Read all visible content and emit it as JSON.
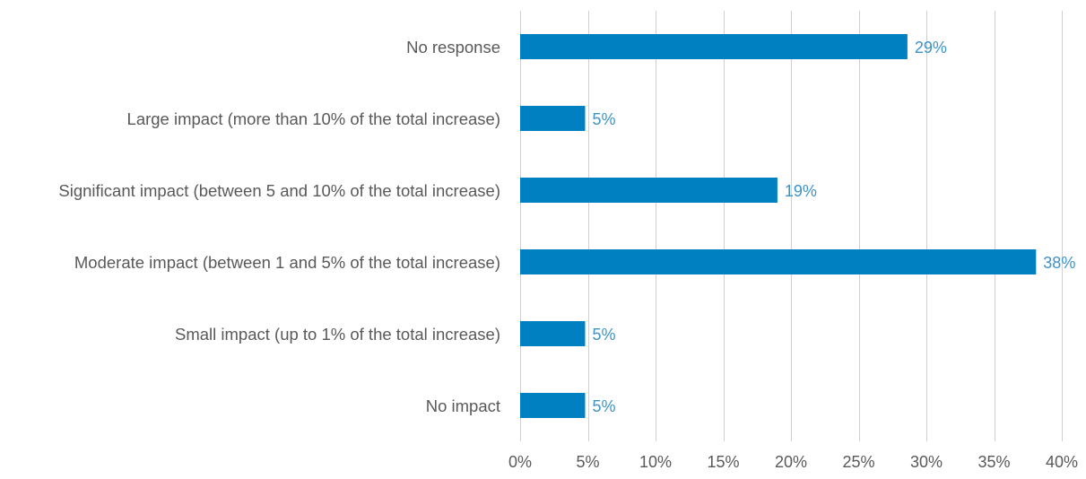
{
  "chart_data": {
    "type": "bar",
    "orientation": "horizontal",
    "title": "",
    "xlabel": "",
    "ylabel": "",
    "categories": [
      "No response",
      "Large impact (more than 10% of the total increase)",
      "Significant impact (between 5 and 10% of the total increase)",
      "Moderate impact (between 1 and 5% of the total increase)",
      "Small impact (up to 1% of the total increase)",
      "No impact"
    ],
    "values": [
      28.6,
      4.8,
      19.0,
      38.1,
      4.8,
      4.8
    ],
    "data_labels": [
      "29%",
      "5%",
      "19%",
      "38%",
      "5%",
      "5%"
    ],
    "xlim": [
      0,
      40
    ],
    "x_ticks": [
      0,
      5,
      10,
      15,
      20,
      25,
      30,
      35,
      40
    ],
    "x_tick_labels": [
      "0%",
      "5%",
      "10%",
      "15%",
      "20%",
      "25%",
      "30%",
      "35%",
      "40%"
    ],
    "grid": "vertical",
    "legend": "none",
    "colors": {
      "bar": "#0080C0",
      "data_label": "#3C93C8",
      "grid": "#D0D0D0",
      "text": "#595959"
    }
  }
}
